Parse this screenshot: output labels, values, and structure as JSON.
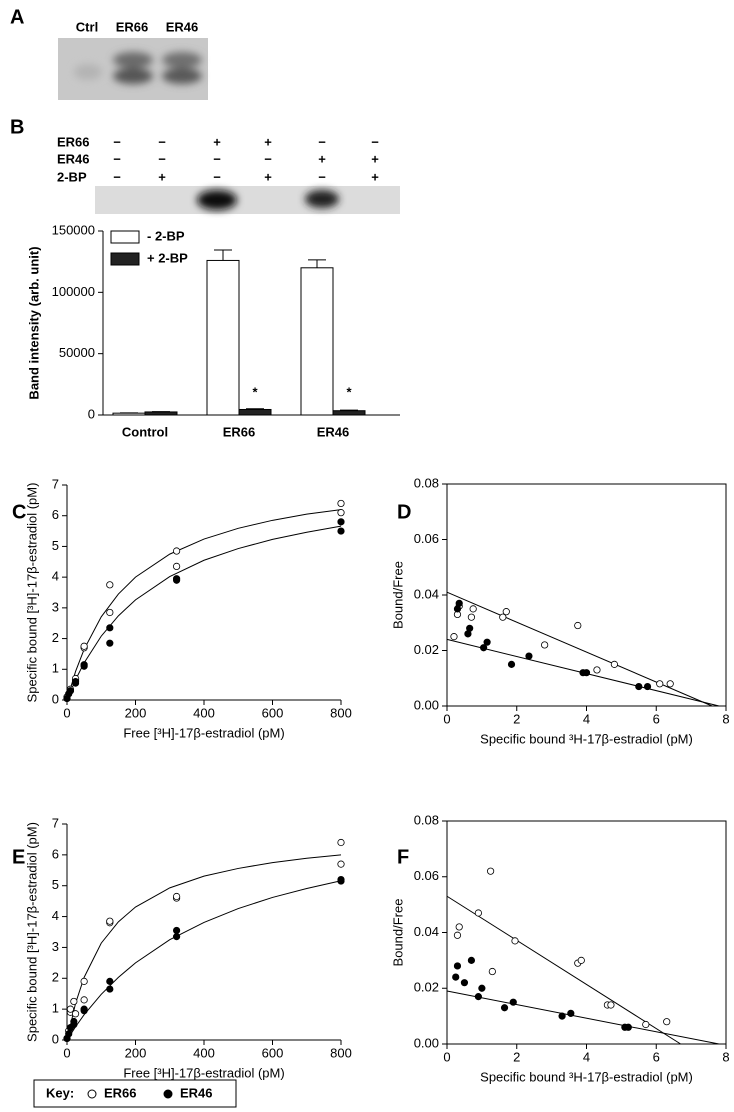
{
  "blot_a": {
    "panel_label": "A",
    "lanes": [
      "Ctrl",
      "ER66",
      "ER46"
    ]
  },
  "blot_b": {
    "panel_label": "B",
    "rows": [
      {
        "label": "ER66",
        "signs": [
          "−",
          "−",
          "+",
          "+",
          "−",
          "−"
        ]
      },
      {
        "label": "ER46",
        "signs": [
          "−",
          "−",
          "−",
          "−",
          "+",
          "+"
        ]
      },
      {
        "label": "2-BP",
        "signs": [
          "−",
          "+",
          "−",
          "+",
          "−",
          "+"
        ]
      }
    ]
  },
  "key": {
    "label": "Key:"
  },
  "chart_data": [
    {
      "type": "bar",
      "ylabel": "Band intensity (arb. unit)",
      "categories": [
        "Control",
        "ER66",
        "ER46"
      ],
      "series": [
        {
          "name": "- 2-BP",
          "color": "#ffffff",
          "values": [
            1500,
            126000,
            120000
          ],
          "errors": [
            200,
            8500,
            6500
          ]
        },
        {
          "name": "+ 2-BP",
          "color": "#222222",
          "values": [
            2500,
            4500,
            3500
          ],
          "errors": [
            300,
            600,
            500
          ]
        }
      ],
      "annotations": [
        "*",
        "*"
      ],
      "ylim": [
        0,
        150000
      ],
      "yticks": [
        0,
        50000,
        100000,
        150000
      ],
      "legend": "top-left"
    },
    {
      "type": "scatter",
      "panel_label": "C",
      "frame": false,
      "xlabel": "Free [³H]-17β-estradiol (pM)",
      "ylabel": "Specific bound [³H]-17β-estradiol (pM)",
      "series": [
        {
          "name": "ER66",
          "marker": "open",
          "x": [
            0,
            0,
            10,
            10,
            25,
            25,
            50,
            50,
            125,
            125,
            320,
            320,
            800,
            800
          ],
          "values": [
            0.05,
            0.1,
            0.3,
            0.35,
            0.65,
            0.7,
            1.7,
            1.75,
            2.85,
            3.75,
            4.35,
            4.85,
            6.1,
            6.4
          ]
        },
        {
          "name": "ER46",
          "marker": "filled",
          "x": [
            0,
            5,
            10,
            25,
            25,
            50,
            50,
            125,
            125,
            320,
            320,
            800,
            800
          ],
          "values": [
            0.05,
            0.2,
            0.3,
            0.55,
            0.6,
            1.1,
            1.15,
            1.85,
            2.35,
            3.9,
            3.95,
            5.5,
            5.8
          ]
        }
      ],
      "fits": [
        {
          "x": [
            0,
            25,
            50,
            100,
            150,
            200,
            300,
            400,
            500,
            600,
            700,
            800
          ],
          "values": [
            0,
            0.93,
            1.65,
            2.71,
            3.45,
            4.0,
            4.75,
            5.24,
            5.59,
            5.85,
            6.05,
            6.2
          ]
        },
        {
          "x": [
            0,
            25,
            50,
            100,
            150,
            200,
            300,
            400,
            500,
            600,
            700,
            800
          ],
          "values": [
            0,
            0.66,
            1.21,
            2.08,
            2.74,
            3.26,
            4.02,
            4.55,
            4.93,
            5.23,
            5.46,
            5.66
          ]
        }
      ],
      "xlim": [
        0,
        800
      ],
      "xticks": [
        0,
        200,
        400,
        600,
        800
      ],
      "ylim": [
        0,
        7
      ],
      "yticks": [
        0,
        1,
        2,
        3,
        4,
        5,
        6,
        7
      ]
    },
    {
      "type": "scatter",
      "panel_label": "D",
      "frame": true,
      "xlabel": "Specific bound ³H-17β-estradiol (pM)",
      "ylabel": "Bound/Free",
      "series": [
        {
          "name": "ER66",
          "marker": "open",
          "x": [
            0.2,
            0.3,
            0.35,
            0.7,
            0.75,
            1.6,
            1.7,
            2.8,
            3.75,
            4.3,
            4.8,
            6.1,
            6.4
          ],
          "values": [
            0.025,
            0.033,
            0.036,
            0.032,
            0.035,
            0.032,
            0.034,
            0.022,
            0.029,
            0.013,
            0.015,
            0.008,
            0.008
          ]
        },
        {
          "name": "ER46",
          "marker": "filled",
          "x": [
            0.3,
            0.35,
            0.6,
            0.65,
            1.05,
            1.15,
            1.85,
            2.35,
            3.9,
            4.0,
            5.5,
            5.75
          ],
          "values": [
            0.035,
            0.037,
            0.026,
            0.028,
            0.021,
            0.023,
            0.015,
            0.018,
            0.012,
            0.012,
            0.007,
            0.007
          ]
        }
      ],
      "fits": [
        {
          "x": [
            0,
            7.6
          ],
          "values": [
            0.041,
            0
          ]
        },
        {
          "x": [
            0,
            7.8
          ],
          "values": [
            0.024,
            0
          ]
        }
      ],
      "xlim": [
        0,
        8
      ],
      "xticks": [
        0,
        2,
        4,
        6,
        8
      ],
      "ylim": [
        0,
        0.08
      ],
      "yticks": [
        {
          "value": 0,
          "label": "0.00"
        },
        {
          "value": 0.02,
          "label": "0.02"
        },
        {
          "value": 0.04,
          "label": "0.04"
        },
        {
          "value": 0.06,
          "label": "0.06"
        },
        {
          "value": 0.08,
          "label": "0.08"
        }
      ]
    },
    {
      "type": "scatter",
      "panel_label": "E",
      "frame": false,
      "xlabel": "Free [³H]-17β-estradiol (pM)",
      "ylabel": "Specific bound [³H]-17β-estradiol (pM)",
      "series": [
        {
          "name": "ER66",
          "marker": "open",
          "x": [
            0,
            5,
            10,
            10,
            20,
            25,
            50,
            50,
            125,
            125,
            320,
            320,
            800,
            800
          ],
          "values": [
            0.05,
            0.3,
            0.9,
            1.0,
            1.25,
            0.85,
            1.3,
            1.9,
            3.8,
            3.85,
            4.6,
            4.65,
            5.7,
            6.4
          ]
        },
        {
          "name": "ER46",
          "marker": "filled",
          "x": [
            0,
            5,
            10,
            20,
            20,
            50,
            50,
            125,
            125,
            320,
            320,
            800,
            800
          ],
          "values": [
            0.05,
            0.2,
            0.4,
            0.5,
            0.6,
            0.95,
            1.0,
            1.65,
            1.9,
            3.35,
            3.55,
            5.15,
            5.2
          ]
        }
      ],
      "fits": [
        {
          "x": [
            0,
            25,
            50,
            100,
            150,
            200,
            300,
            400,
            500,
            600,
            700,
            800
          ],
          "values": [
            0,
            1.19,
            2.03,
            3.14,
            3.83,
            4.31,
            4.93,
            5.31,
            5.56,
            5.75,
            5.89,
            6.0
          ]
        },
        {
          "x": [
            0,
            25,
            50,
            100,
            150,
            200,
            300,
            400,
            500,
            600,
            700,
            800
          ],
          "values": [
            0,
            0.43,
            0.82,
            1.48,
            2.03,
            2.5,
            3.25,
            3.81,
            4.26,
            4.62,
            4.91,
            5.16
          ]
        }
      ],
      "xlim": [
        0,
        800
      ],
      "xticks": [
        0,
        200,
        400,
        600,
        800
      ],
      "ylim": [
        0,
        7
      ],
      "yticks": [
        0,
        1,
        2,
        3,
        4,
        5,
        6,
        7
      ]
    },
    {
      "type": "scatter",
      "panel_label": "F",
      "frame": true,
      "xlabel": "Specific bound ³H-17β-estradiol (pM)",
      "ylabel": "Bound/Free",
      "series": [
        {
          "name": "ER66",
          "marker": "open",
          "x": [
            0.3,
            0.35,
            0.9,
            1.25,
            1.3,
            1.95,
            3.75,
            3.85,
            4.6,
            4.7,
            5.7,
            6.3
          ],
          "values": [
            0.039,
            0.042,
            0.047,
            0.062,
            0.026,
            0.037,
            0.029,
            0.03,
            0.014,
            0.014,
            0.007,
            0.008
          ]
        },
        {
          "name": "ER46",
          "marker": "filled",
          "x": [
            0.25,
            0.3,
            0.5,
            0.7,
            0.9,
            1.0,
            1.65,
            1.9,
            3.3,
            3.55,
            5.1,
            5.2
          ],
          "values": [
            0.024,
            0.028,
            0.022,
            0.03,
            0.017,
            0.02,
            0.013,
            0.015,
            0.01,
            0.011,
            0.006,
            0.006
          ]
        }
      ],
      "fits": [
        {
          "x": [
            0,
            6.7
          ],
          "values": [
            0.053,
            0
          ]
        },
        {
          "x": [
            0,
            7.8
          ],
          "values": [
            0.019,
            0
          ]
        }
      ],
      "xlim": [
        0,
        8
      ],
      "xticks": [
        0,
        2,
        4,
        6,
        8
      ],
      "ylim": [
        0,
        0.08
      ],
      "yticks": [
        {
          "value": 0,
          "label": "0.00"
        },
        {
          "value": 0.02,
          "label": "0.02"
        },
        {
          "value": 0.04,
          "label": "0.04"
        },
        {
          "value": 0.06,
          "label": "0.06"
        },
        {
          "value": 0.08,
          "label": "0.08"
        }
      ]
    }
  ]
}
